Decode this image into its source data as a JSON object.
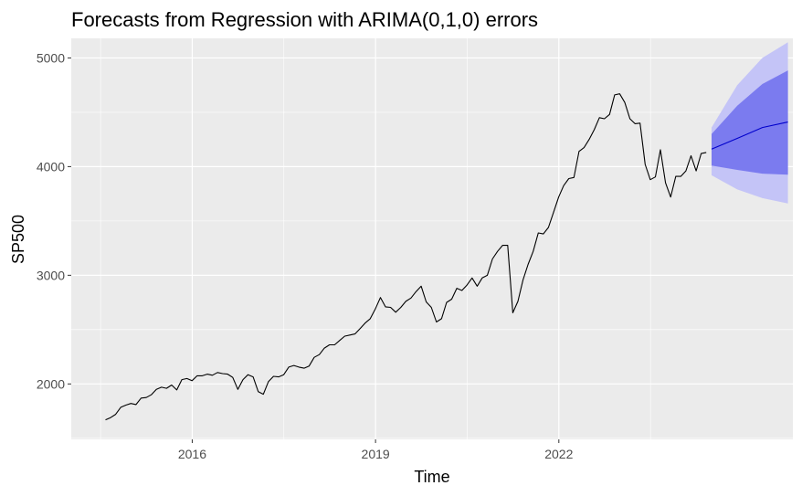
{
  "chart_data": {
    "type": "line",
    "title": "Forecasts from Regression with ARIMA(0,1,0) errors",
    "xlabel": "Time",
    "ylabel": "SP500",
    "xlim": [
      2014.02,
      2025.83
    ],
    "ylim": [
      1490,
      5180
    ],
    "x_ticks": [
      2016,
      2019,
      2022
    ],
    "x_tick_labels": [
      "2016",
      "2019",
      "2022"
    ],
    "y_ticks": [
      2000,
      3000,
      4000,
      5000
    ],
    "y_tick_labels": [
      "2000",
      "3000",
      "4000",
      "5000"
    ],
    "grid": true,
    "legend": "none",
    "colors": {
      "panel": "#ebebeb",
      "grid": "#ffffff",
      "history": "#000000",
      "forecast_mean": "#0000cc",
      "pi80": "#7b7bef",
      "pi95": "#c4c4f7"
    },
    "series": [
      {
        "kind": "history",
        "x_start": 2014.58,
        "step": 0.08333,
        "values": [
          1670,
          1690,
          1720,
          1785,
          1805,
          1820,
          1810,
          1870,
          1875,
          1900,
          1950,
          1970,
          1960,
          1990,
          1945,
          2040,
          2050,
          2030,
          2075,
          2075,
          2090,
          2080,
          2105,
          2095,
          2090,
          2060,
          1950,
          2040,
          2085,
          2065,
          1930,
          1905,
          2020,
          2070,
          2065,
          2085,
          2155,
          2170,
          2155,
          2145,
          2165,
          2245,
          2270,
          2330,
          2360,
          2360,
          2400,
          2440,
          2450,
          2460,
          2510,
          2560,
          2600,
          2690,
          2795,
          2710,
          2705,
          2660,
          2705,
          2760,
          2790,
          2850,
          2900,
          2755,
          2705,
          2570,
          2600,
          2750,
          2780,
          2880,
          2860,
          2910,
          2975,
          2900,
          2975,
          3000,
          3150,
          3220,
          3275,
          3275,
          2655,
          2760,
          2955,
          3100,
          3220,
          3390,
          3380,
          3440,
          3580,
          3720,
          3825,
          3890,
          3900,
          4140,
          4175,
          4250,
          4340,
          4450,
          4440,
          4480,
          4660,
          4670,
          4590,
          4440,
          4395,
          4400,
          4020,
          3880,
          3905,
          4155,
          3850,
          3720,
          3910,
          3910,
          3960,
          4100,
          3960,
          4120,
          4130
        ]
      }
    ],
    "forecast": {
      "x": [
        2024.5,
        2024.92,
        2025.33,
        2025.75
      ],
      "mean": [
        4160,
        4260,
        4360,
        4410
      ],
      "lo80": [
        4010,
        3970,
        3935,
        3925
      ],
      "hi80": [
        4300,
        4560,
        4760,
        4885
      ],
      "lo95": [
        3920,
        3790,
        3710,
        3660
      ],
      "hi95": [
        4360,
        4750,
        5000,
        5145
      ]
    }
  }
}
